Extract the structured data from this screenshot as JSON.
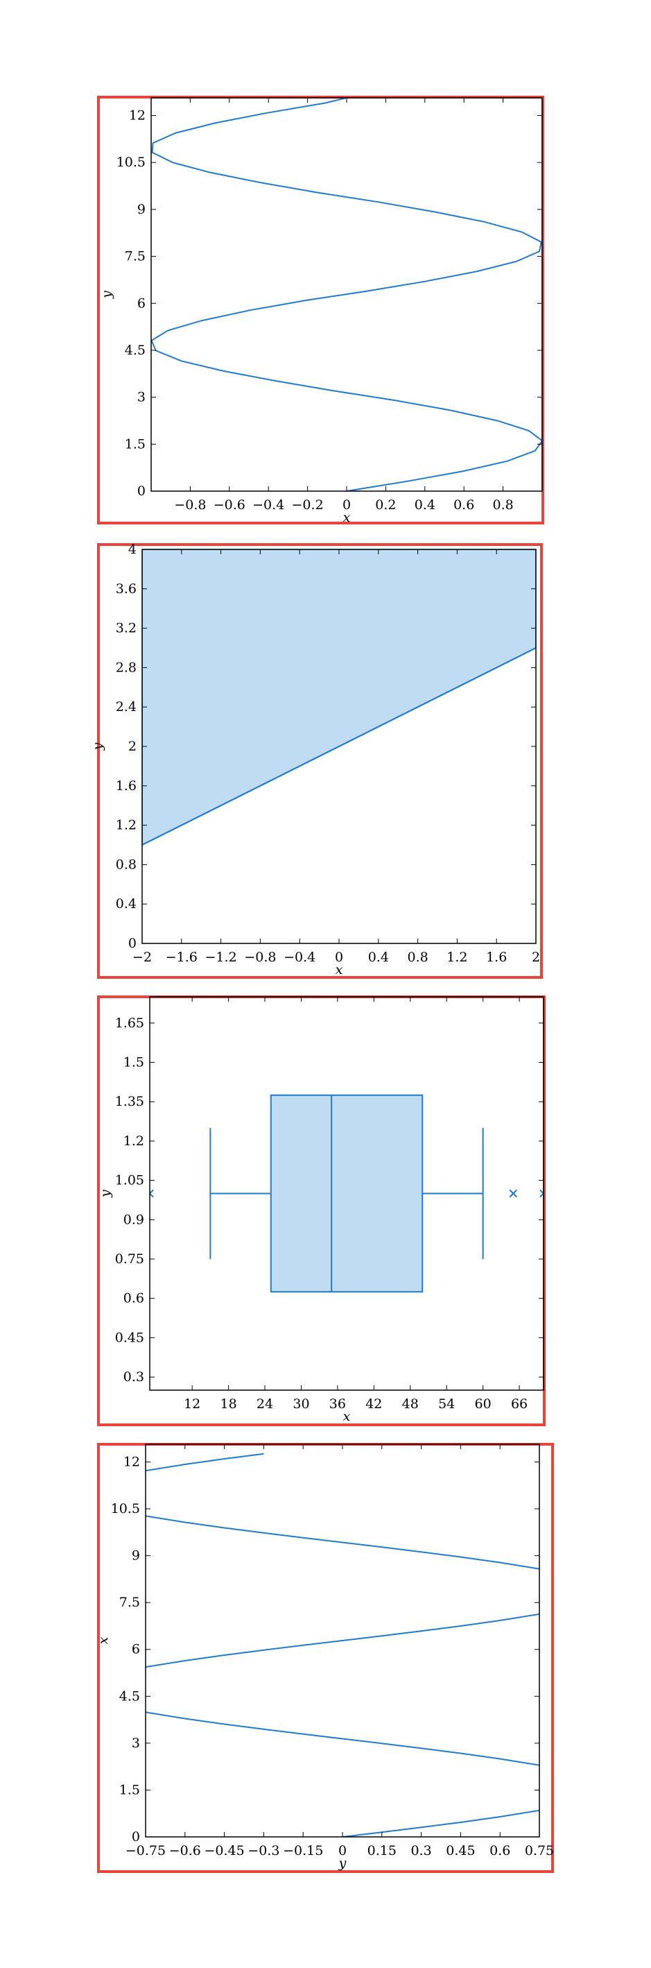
{
  "chart_data": [
    {
      "type": "line",
      "function": "x = sin(y)",
      "xlabel": "x",
      "ylabel": "y",
      "xlim": [
        -1,
        1
      ],
      "ylim": [
        0,
        12.566
      ],
      "xticks": [
        -0.8,
        -0.6,
        -0.4,
        -0.2,
        0,
        0.2,
        0.4,
        0.6,
        0.8
      ],
      "xtick_labels": [
        "−0.8",
        "−0.6",
        "−0.4",
        "−0.2",
        "0",
        "0.2",
        "0.4",
        "0.6",
        "0.8"
      ],
      "yticks": [
        0,
        1.5,
        3,
        4.5,
        6,
        7.5,
        9,
        10.5,
        12
      ],
      "ytick_labels": [
        "0",
        "1.5",
        "3",
        "4.5",
        "6",
        "7.5",
        "9",
        "10.5",
        "12"
      ],
      "series": [
        {
          "x": [
            0,
            0.315,
            0.598,
            0.822,
            0.964,
            1.0,
            0.932,
            0.771,
            0.534,
            0.247,
            -0.061,
            -0.362,
            -0.632,
            -0.846,
            -0.976,
            -0.998,
            -0.915,
            -0.74,
            -0.494,
            -0.203,
            0.105,
            0.402,
            0.666,
            0.869,
            0.986,
            0.995,
            0.895,
            0.706,
            0.451,
            0.159,
            -0.151,
            -0.442,
            -0.698,
            -0.89,
            -0.994,
            -0.991,
            -0.876,
            -0.673,
            -0.41,
            -0.11,
            0.0
          ],
          "y": [
            0,
            0.32,
            0.64,
            0.96,
            1.29,
            1.61,
            1.93,
            2.25,
            2.58,
            2.9,
            3.2,
            3.52,
            3.84,
            4.16,
            4.49,
            4.81,
            5.13,
            5.45,
            5.78,
            6.1,
            6.39,
            6.7,
            7.02,
            7.34,
            7.66,
            7.96,
            8.28,
            8.6,
            8.92,
            9.24,
            9.54,
            9.86,
            10.18,
            10.5,
            10.82,
            11.12,
            11.44,
            11.76,
            12.08,
            12.4,
            12.566
          ]
        }
      ]
    },
    {
      "type": "area",
      "function": "y = x/2 + 2, shaded above to y = 4",
      "xlabel": "x",
      "ylabel": "y",
      "xlim": [
        -2,
        2
      ],
      "ylim": [
        0,
        4
      ],
      "xticks": [
        -2,
        -1.6,
        -1.2,
        -0.8,
        -0.4,
        0,
        0.4,
        0.8,
        1.2,
        1.6,
        2
      ],
      "xtick_labels": [
        "−2",
        "−1.6",
        "−1.2",
        "−0.8",
        "−0.4",
        "0",
        "0.4",
        "0.8",
        "1.2",
        "1.6",
        "2"
      ],
      "yticks": [
        0,
        0.4,
        0.8,
        1.2,
        1.6,
        2,
        2.4,
        2.8,
        3.2,
        3.6,
        4
      ],
      "ytick_labels": [
        "0",
        "0.4",
        "0.8",
        "1.2",
        "1.6",
        "2",
        "2.4",
        "2.8",
        "3.2",
        "3.6",
        "4"
      ],
      "series": [
        {
          "x": [
            -2,
            2
          ],
          "y": [
            1,
            3
          ],
          "fill_to": 4
        }
      ]
    },
    {
      "type": "box",
      "orientation": "horizontal",
      "xlabel": "x",
      "ylabel": "y",
      "xlim": [
        5,
        70
      ],
      "ylim": [
        0.25,
        1.75
      ],
      "xticks": [
        12,
        18,
        24,
        30,
        36,
        42,
        48,
        54,
        60,
        66
      ],
      "xtick_labels": [
        "12",
        "18",
        "24",
        "30",
        "36",
        "42",
        "48",
        "54",
        "60",
        "66"
      ],
      "yticks": [
        0.3,
        0.45,
        0.6,
        0.75,
        0.9,
        1.05,
        1.2,
        1.35,
        1.5,
        1.65
      ],
      "ytick_labels": [
        "0.3",
        "0.45",
        "0.6",
        "0.75",
        "0.9",
        "1.05",
        "1.2",
        "1.35",
        "1.5",
        "1.65"
      ],
      "box": {
        "position": 1,
        "whisker_low": 15,
        "q1": 25,
        "median": 35,
        "q3": 50,
        "whisker_high": 60,
        "box_bottom": 0.625,
        "box_top": 1.375,
        "cap_bottom": 0.75,
        "cap_top": 1.25,
        "fliers": [
          5,
          65,
          70
        ]
      }
    },
    {
      "type": "line",
      "function": "y = sin(x) (x vertical)",
      "xlabel": "y",
      "ylabel": "x",
      "xlim": [
        -0.75,
        0.75
      ],
      "ylim": [
        0,
        12.566
      ],
      "xticks": [
        -0.75,
        -0.6,
        -0.45,
        -0.3,
        -0.15,
        0,
        0.15,
        0.3,
        0.45,
        0.6,
        0.75
      ],
      "xtick_labels": [
        "−0.75",
        "−0.6",
        "−0.45",
        "−0.3",
        "−0.15",
        "0",
        "0.15",
        "0.3",
        "0.45",
        "0.6",
        "0.75"
      ],
      "yticks": [
        0,
        1.5,
        3,
        4.5,
        6,
        7.5,
        9,
        10.5,
        12
      ],
      "ytick_labels": [
        "0",
        "1.5",
        "3",
        "4.5",
        "6",
        "7.5",
        "9",
        "10.5",
        "12"
      ],
      "series": [
        {
          "x": [
            0,
            0.15,
            0.3,
            0.45,
            0.6,
            0.75
          ],
          "y": [
            0,
            0.151,
            0.305,
            0.467,
            0.644,
            0.848
          ]
        },
        {
          "x": [
            0.75,
            0.6,
            0.45,
            0.3,
            0.15,
            0,
            -0.15,
            -0.3,
            -0.45,
            -0.6,
            -0.75
          ],
          "y": [
            2.294,
            2.498,
            2.675,
            2.837,
            2.991,
            3.142,
            3.292,
            3.446,
            3.608,
            3.785,
            3.99
          ]
        },
        {
          "x": [
            -0.75,
            -0.6,
            -0.45,
            -0.3,
            -0.15,
            0,
            0.15,
            0.3,
            0.45,
            0.6,
            0.75
          ],
          "y": [
            5.435,
            5.639,
            5.816,
            5.978,
            6.132,
            6.283,
            6.434,
            6.588,
            6.75,
            6.927,
            7.131
          ]
        },
        {
          "x": [
            0.75,
            0.6,
            0.45,
            0.3,
            0.15,
            0,
            -0.15,
            -0.3,
            -0.45,
            -0.6,
            -0.75
          ],
          "y": [
            8.577,
            8.781,
            8.958,
            9.12,
            9.274,
            9.425,
            9.575,
            9.729,
            9.891,
            10.068,
            10.272
          ]
        },
        {
          "x": [
            -0.75,
            -0.6,
            -0.45,
            -0.3
          ],
          "y": [
            11.718,
            11.922,
            12.099,
            12.261
          ]
        }
      ]
    }
  ]
}
